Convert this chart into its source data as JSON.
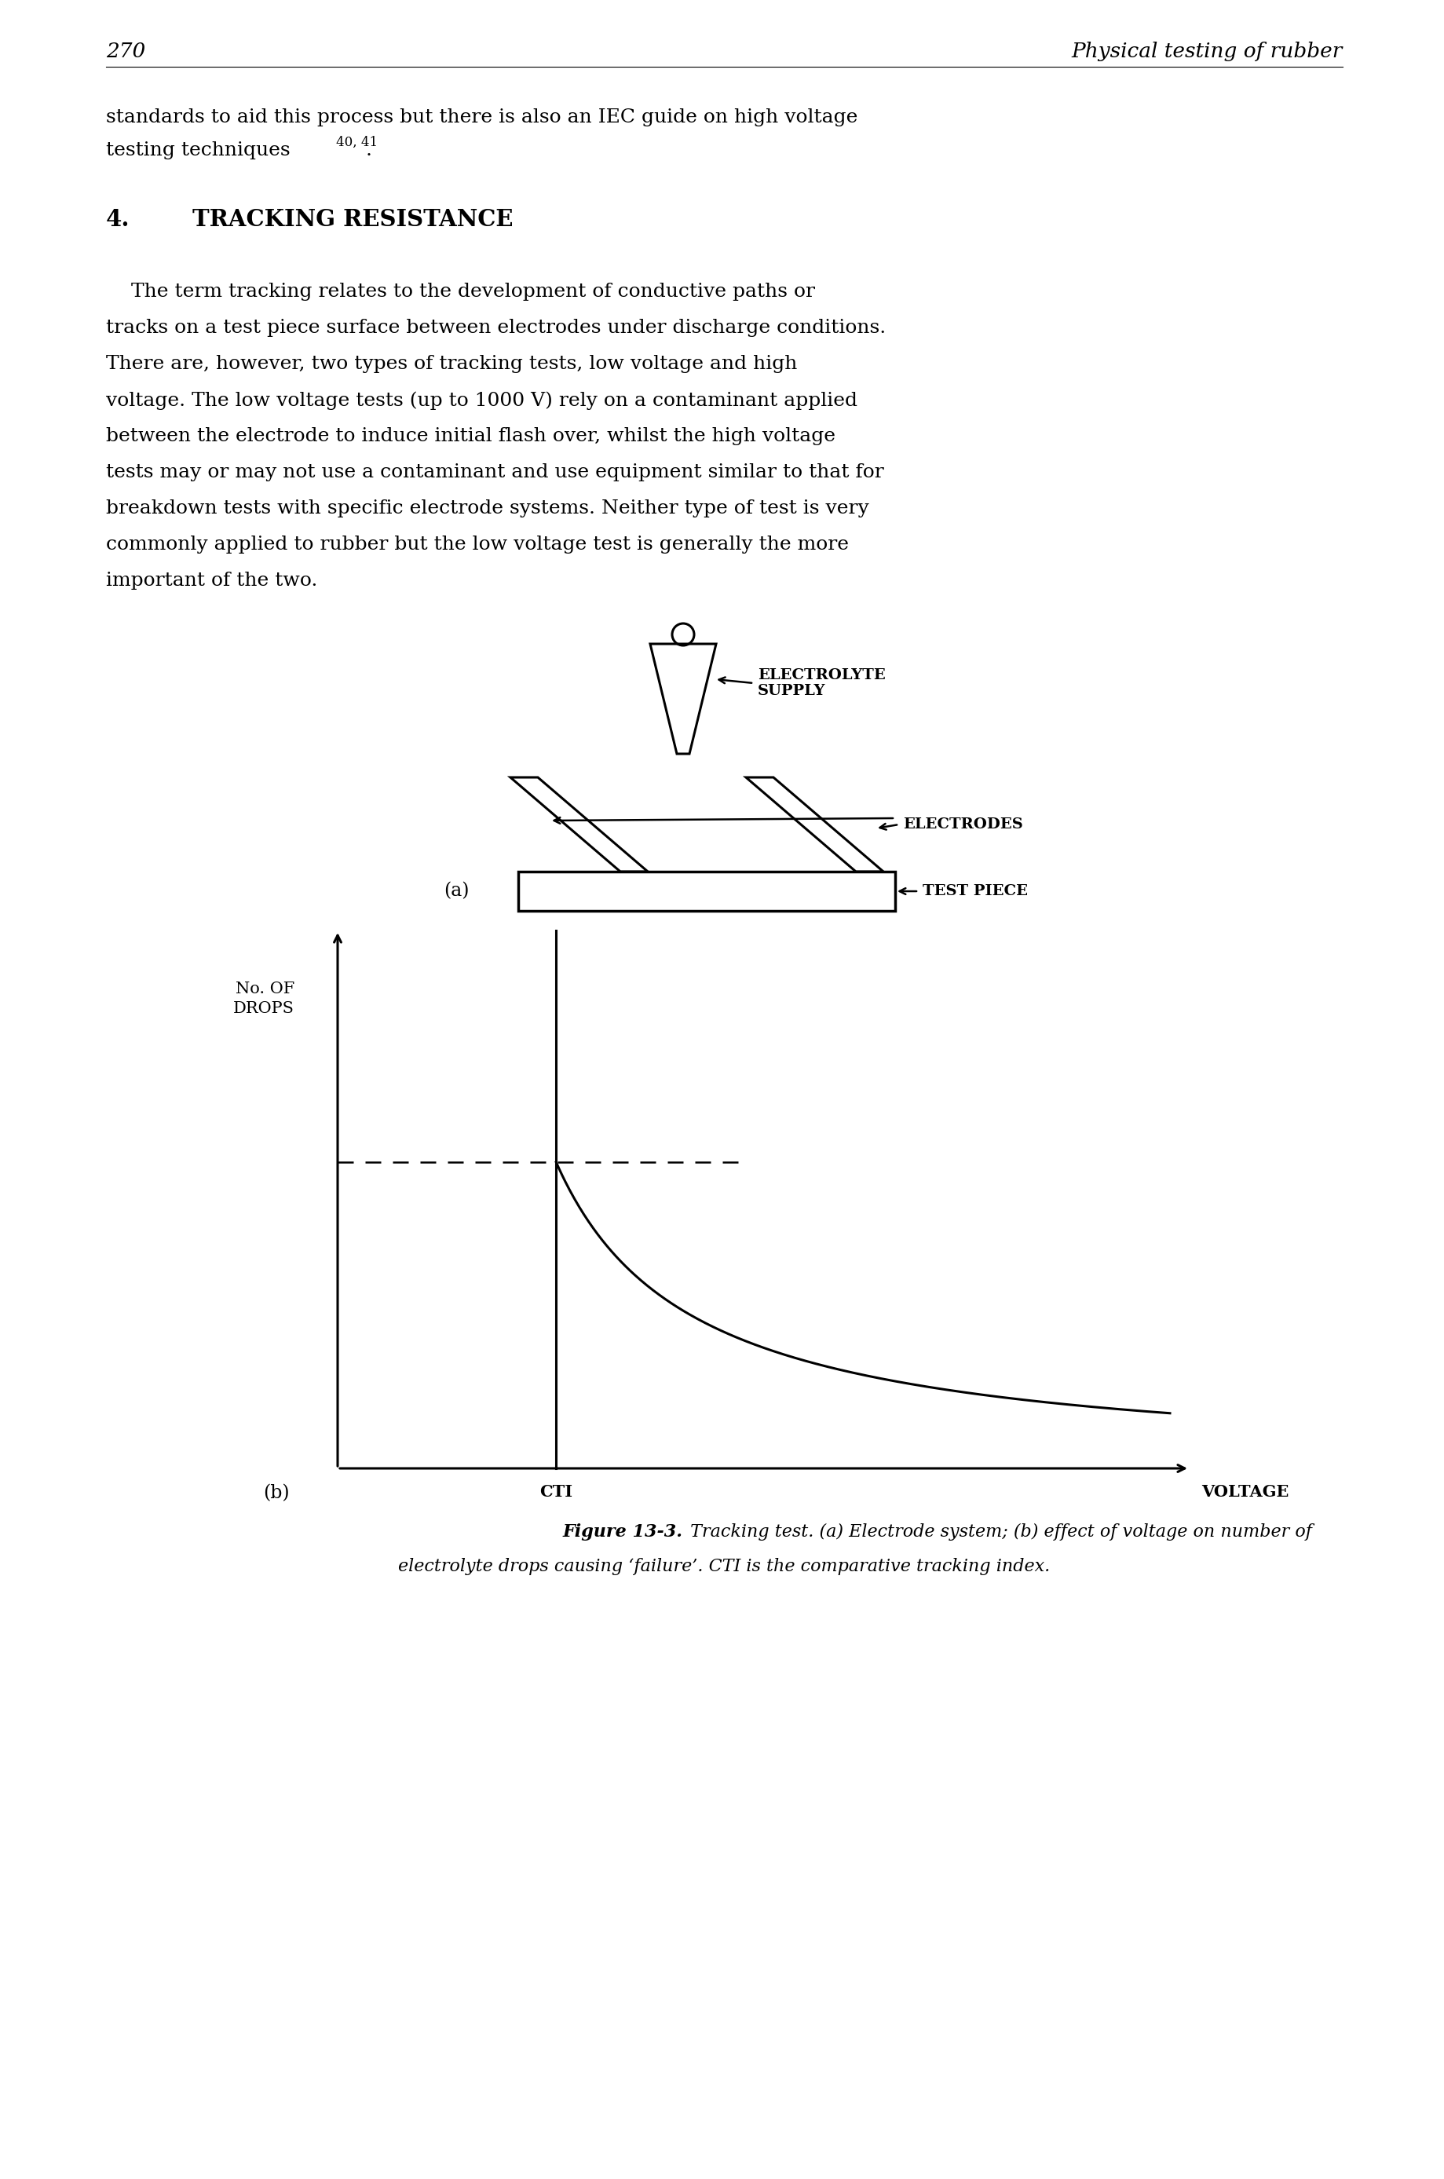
{
  "page_number": "270",
  "page_header": "Physical testing of rubber",
  "body_text_line1": "standards to aid this process but there is also an IEC guide on high voltage",
  "body_text_line2": "testing techniques",
  "superscript": "40, 41",
  "section_number": "4.",
  "section_title": "TRACKING RESISTANCE",
  "para_lines": [
    "    The term tracking relates to the development of conductive paths or",
    "tracks on a test piece surface between electrodes under discharge conditions.",
    "There are, however, two types of tracking tests, low voltage and high",
    "voltage. The low voltage tests (up to 1000 V) rely on a contaminant applied",
    "between the electrode to induce initial flash over, whilst the high voltage",
    "tests may or may not use a contaminant and use equipment similar to that for",
    "breakdown tests with specific electrode systems. Neither type of test is very",
    "commonly applied to rubber but the low voltage test is generally the more",
    "important of the two."
  ],
  "label_a": "(a)",
  "label_b": "(b)",
  "label_electrolyte_supply": "ELECTROLYTE\nSUPPLY",
  "label_electrodes": "ELECTRODES",
  "label_test_piece": "TEST PIECE",
  "label_no_drops": "No. OF\nDROPS",
  "label_cti": "CTI",
  "label_voltage": "VOLTAGE",
  "figure_caption_bold": "Figure 13-3.",
  "figure_caption_rest_line1": " Tracking test. (a) Electrode system; (b) effect of voltage on number of",
  "figure_caption_rest_line2": "electrolyte drops causing ‘failure’. CTI is the comparative tracking index.",
  "bg_color": "#ffffff",
  "text_color": "#000000"
}
